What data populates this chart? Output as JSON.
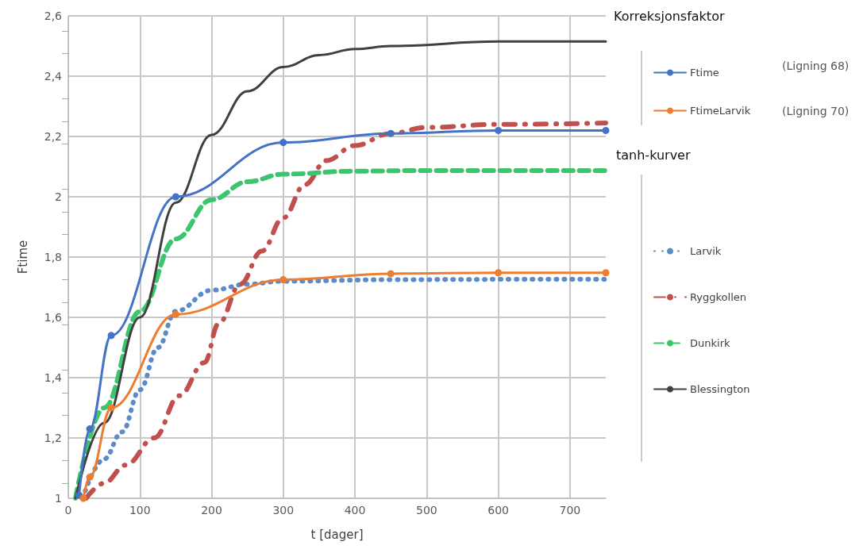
{
  "chart_data": {
    "type": "line",
    "xlabel": "t [dager]",
    "ylabel": "Ftime",
    "xlim": [
      0,
      750
    ],
    "xticks": [
      0,
      100,
      200,
      300,
      400,
      500,
      600,
      700
    ],
    "ylim": [
      1,
      2.6
    ],
    "yticks": [
      {
        "value": 1,
        "label": "1"
      },
      {
        "value": 1.2,
        "label": "1,2"
      },
      {
        "value": 1.4,
        "label": "1,4"
      },
      {
        "value": 1.6,
        "label": "1,6"
      },
      {
        "value": 1.8,
        "label": "1,8"
      },
      {
        "value": 2,
        "label": "2"
      },
      {
        "value": 2.2,
        "label": "2,2"
      },
      {
        "value": 2.4,
        "label": "2,4"
      },
      {
        "value": 2.6,
        "label": "2,6"
      }
    ],
    "grid": true,
    "legend": "right",
    "legend_title": "Korreksjonsfaktor",
    "annotations": [
      "(Ligning 68)",
      "(Ligning 70)",
      "tanh-kurver"
    ],
    "series": [
      {
        "name": "Ftime",
        "color": "#4472c4",
        "marker": "circle",
        "line_style": "solid",
        "x": [
          15,
          30,
          60,
          150,
          300,
          450,
          600,
          750
        ],
        "values": [
          1.01,
          1.23,
          1.54,
          2.0,
          2.18,
          2.21,
          2.22,
          2.22
        ]
      },
      {
        "name": "FtimeLarvik",
        "color": "#ed7d31",
        "marker": "circle",
        "line_style": "solid",
        "x": [
          21,
          30,
          60,
          150,
          300,
          450,
          600,
          750
        ],
        "values": [
          1.0,
          1.07,
          1.3,
          1.61,
          1.725,
          1.745,
          1.748,
          1.748
        ]
      },
      {
        "name": "Larvik",
        "color": "#5b8bc9",
        "marker": "none",
        "line_style": "dotted",
        "x": [
          20,
          50,
          75,
          100,
          125,
          150,
          200,
          250,
          300,
          450,
          600,
          750
        ],
        "values": [
          1.0,
          1.13,
          1.22,
          1.36,
          1.5,
          1.62,
          1.69,
          1.71,
          1.72,
          1.725,
          1.726,
          1.726
        ]
      },
      {
        "name": "Ryggkollen",
        "color": "#c0504d",
        "marker": "none",
        "line_style": "dashdot",
        "x": [
          25,
          50,
          80,
          120,
          155,
          190,
          210,
          240,
          270,
          300,
          330,
          360,
          400,
          450,
          500,
          600,
          750
        ],
        "values": [
          1.0,
          1.05,
          1.11,
          1.2,
          1.34,
          1.45,
          1.58,
          1.71,
          1.82,
          1.93,
          2.04,
          2.12,
          2.17,
          2.21,
          2.23,
          2.24,
          2.245
        ]
      },
      {
        "name": "Dunkirk",
        "color": "#3cc46e",
        "marker": "none",
        "line_style": "dashed",
        "x": [
          10,
          50,
          100,
          150,
          200,
          250,
          300,
          400,
          500,
          750
        ],
        "values": [
          1.0,
          1.3,
          1.62,
          1.86,
          1.99,
          2.05,
          2.075,
          2.085,
          2.087,
          2.087
        ]
      },
      {
        "name": "Blessington",
        "color": "#404040",
        "marker": "none",
        "line_style": "solid",
        "x": [
          10,
          50,
          100,
          150,
          200,
          250,
          300,
          350,
          400,
          450,
          600,
          750
        ],
        "values": [
          1.0,
          1.25,
          1.6,
          1.98,
          2.205,
          2.35,
          2.43,
          2.47,
          2.49,
          2.5,
          2.515,
          2.515
        ]
      }
    ]
  }
}
